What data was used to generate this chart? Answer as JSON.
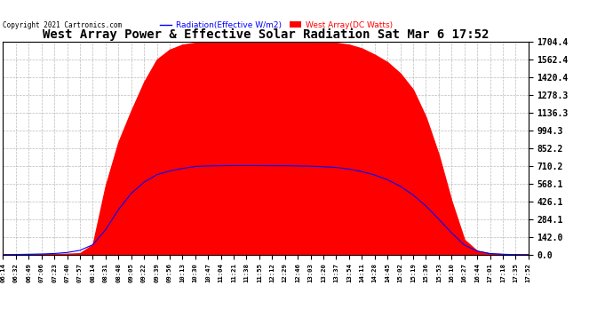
{
  "title": "West Array Power & Effective Solar Radiation Sat Mar 6 17:52",
  "copyright": "Copyright 2021 Cartronics.com",
  "legend_radiation": "Radiation(Effective W/m2)",
  "legend_west": "West Array(DC Watts)",
  "yticks": [
    0.0,
    142.0,
    284.1,
    426.1,
    568.1,
    710.2,
    852.2,
    994.3,
    1136.3,
    1278.3,
    1420.4,
    1562.4,
    1704.4
  ],
  "ymax": 1704.4,
  "ymin": 0.0,
  "background_color": "#ffffff",
  "grid_color": "#bbbbbb",
  "red_color": "#ff0000",
  "blue_color": "#0000ff",
  "xtick_labels": [
    "06:14",
    "06:32",
    "06:49",
    "07:06",
    "07:23",
    "07:40",
    "07:57",
    "08:14",
    "08:31",
    "08:48",
    "09:05",
    "09:22",
    "09:39",
    "09:56",
    "10:13",
    "10:30",
    "10:47",
    "11:04",
    "11:21",
    "11:38",
    "11:55",
    "12:12",
    "12:29",
    "12:46",
    "13:03",
    "13:20",
    "13:37",
    "13:54",
    "14:11",
    "14:28",
    "14:45",
    "15:02",
    "15:19",
    "15:36",
    "15:53",
    "16:10",
    "16:27",
    "16:44",
    "17:01",
    "17:18",
    "17:35",
    "17:52"
  ],
  "red_values": [
    2,
    3,
    4,
    5,
    6,
    8,
    12,
    80,
    550,
    900,
    1150,
    1380,
    1560,
    1640,
    1680,
    1695,
    1700,
    1702,
    1703,
    1703,
    1703,
    1703,
    1703,
    1702,
    1700,
    1698,
    1695,
    1680,
    1650,
    1600,
    1540,
    1450,
    1320,
    1100,
    800,
    430,
    120,
    30,
    10,
    5,
    3,
    2
  ],
  "blue_values": [
    0,
    2,
    4,
    6,
    10,
    18,
    35,
    80,
    200,
    360,
    490,
    580,
    640,
    670,
    690,
    706,
    710,
    712,
    713,
    713,
    713,
    712,
    712,
    710,
    708,
    704,
    698,
    685,
    665,
    638,
    600,
    548,
    478,
    390,
    285,
    175,
    78,
    30,
    10,
    4,
    1,
    0
  ]
}
